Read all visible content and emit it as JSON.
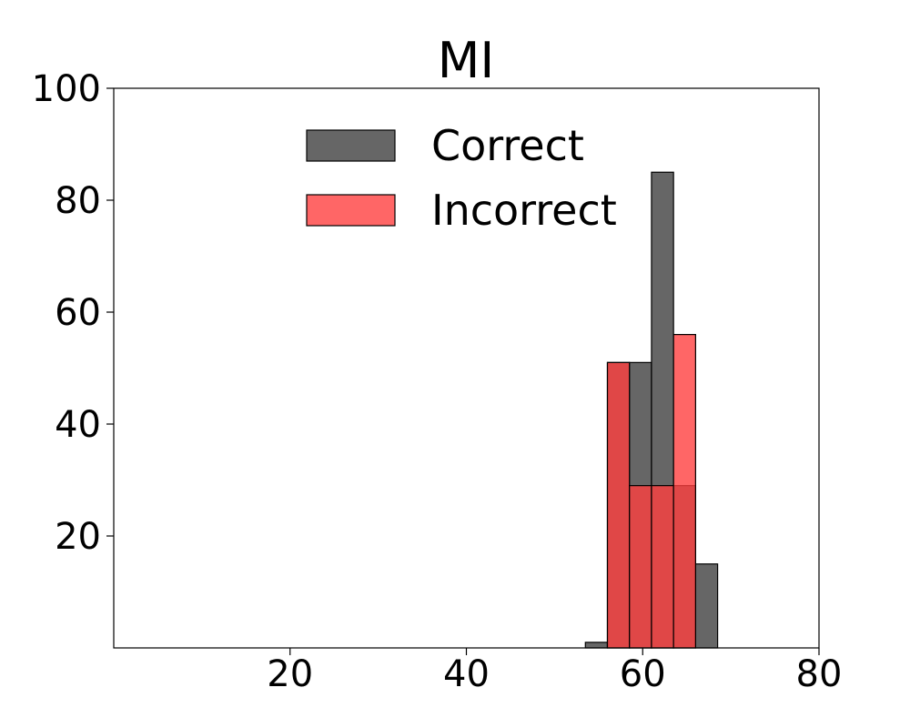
{
  "chart_data": {
    "type": "bar",
    "title": "MI",
    "xlabel": "",
    "ylabel": "",
    "xlim": [
      0,
      80
    ],
    "ylim": [
      0,
      100
    ],
    "xticks": [
      20,
      40,
      60,
      80
    ],
    "yticks": [
      20,
      40,
      60,
      80,
      100
    ],
    "grid": false,
    "legend_position": "upper-center",
    "series": [
      {
        "name": "Correct",
        "color": "#666666",
        "bins": [
          {
            "x0": 53.5,
            "x1": 56.0,
            "value": 1
          },
          {
            "x0": 56.0,
            "x1": 58.5,
            "value": 51
          },
          {
            "x0": 58.5,
            "x1": 61.0,
            "value": 51
          },
          {
            "x0": 61.0,
            "x1": 63.5,
            "value": 85
          },
          {
            "x0": 63.5,
            "x1": 66.0,
            "value": 29
          },
          {
            "x0": 66.0,
            "x1": 68.5,
            "value": 15
          }
        ]
      },
      {
        "name": "Incorrect",
        "color": "#ff4040",
        "bins": [
          {
            "x0": 56.0,
            "x1": 58.5,
            "value": 51
          },
          {
            "x0": 58.5,
            "x1": 61.0,
            "value": 29
          },
          {
            "x0": 61.0,
            "x1": 63.5,
            "value": 29
          },
          {
            "x0": 63.5,
            "x1": 66.0,
            "value": 56
          },
          {
            "x0": 66.0,
            "x1": 68.5,
            "value": 0
          }
        ]
      }
    ]
  }
}
